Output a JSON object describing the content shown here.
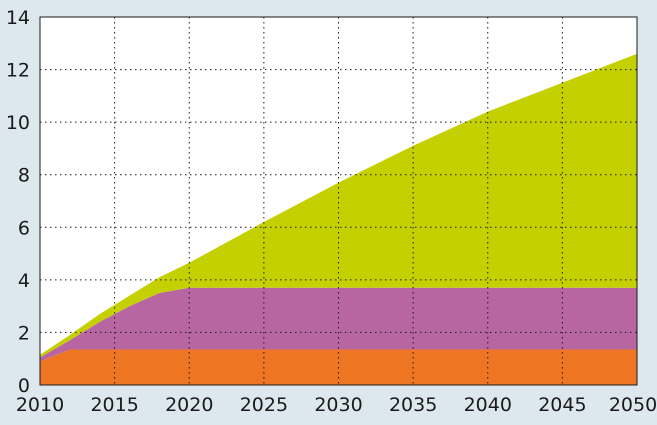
{
  "chart_data": {
    "type": "area",
    "stacked": true,
    "title": "",
    "xlabel": "",
    "ylabel": "",
    "xlim": [
      2010,
      2050
    ],
    "ylim": [
      0,
      14
    ],
    "grid": true,
    "x_ticks": [
      "2010",
      "2015",
      "2020",
      "2025",
      "2030",
      "2035",
      "2040",
      "2045",
      "2050"
    ],
    "y_ticks": [
      "0",
      "2",
      "4",
      "6",
      "8",
      "10",
      "12",
      "14"
    ],
    "x": [
      2010,
      2012,
      2014,
      2016,
      2018,
      2020,
      2025,
      2030,
      2035,
      2040,
      2045,
      2050
    ],
    "series": [
      {
        "color": "#ee7623",
        "values": [
          0.9,
          1.35,
          1.35,
          1.35,
          1.35,
          1.35,
          1.35,
          1.35,
          1.35,
          1.35,
          1.35,
          1.35
        ]
      },
      {
        "color": "#b766a1",
        "values": [
          0.15,
          0.35,
          1.05,
          1.65,
          2.15,
          2.35,
          2.35,
          2.35,
          2.35,
          2.35,
          2.35,
          2.35
        ]
      },
      {
        "color": "#c5d000",
        "values": [
          0.1,
          0.2,
          0.3,
          0.4,
          0.6,
          0.95,
          2.5,
          4.0,
          5.4,
          6.7,
          7.8,
          8.9
        ]
      }
    ]
  }
}
